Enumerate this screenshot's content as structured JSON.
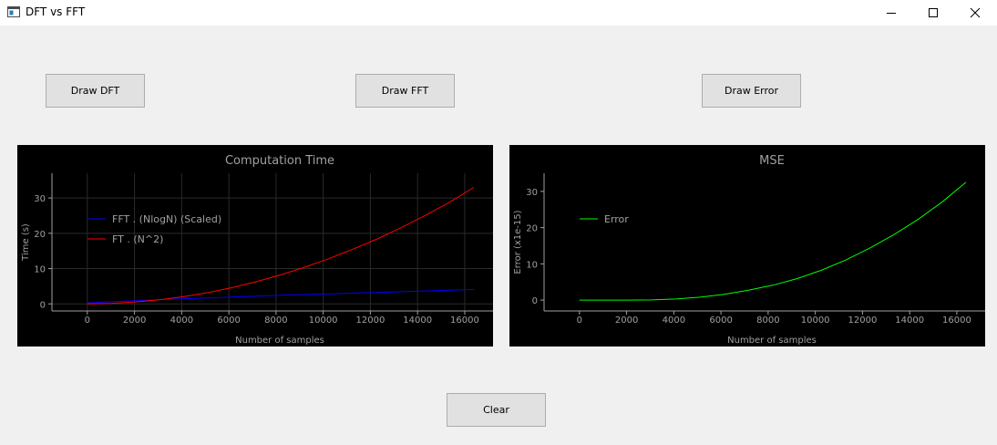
{
  "window": {
    "title": "DFT vs FFT"
  },
  "buttons": {
    "draw_dft": "Draw DFT",
    "draw_fft": "Draw FFT",
    "draw_error": "Draw Error",
    "clear": "Clear"
  },
  "colors": {
    "plot_background": "#000000",
    "fft_series": "#0000ff",
    "ft_series": "#ff0000",
    "error_series": "#00ff00",
    "axis_text": "#a0a0a0"
  },
  "chart_data": [
    {
      "type": "line",
      "title": "Computation Time",
      "xlabel": "Number of samples",
      "ylabel": "Time (s)",
      "xlim": [
        -1500,
        17200
      ],
      "ylim": [
        -2,
        37
      ],
      "xticks": [
        "0",
        "2000",
        "4000",
        "6000",
        "8000",
        "10000",
        "12000",
        "14000",
        "16000"
      ],
      "yticks": [
        "0",
        "10",
        "20",
        "30"
      ],
      "grid": true,
      "legend_position": "top-left",
      "series": [
        {
          "name": "FFT . (NlogN) (Scaled)",
          "color": "#0000ff",
          "x": [
            0,
            1024,
            2048,
            3072,
            4096,
            5120,
            6144,
            7168,
            8192,
            9216,
            10240,
            11264,
            12288,
            13312,
            14336,
            15360,
            16384
          ],
          "y": [
            0.3,
            0.6,
            0.9,
            1.2,
            1.45,
            1.7,
            1.95,
            2.2,
            2.45,
            2.65,
            2.85,
            3.05,
            3.25,
            3.45,
            3.65,
            3.85,
            4.1
          ]
        },
        {
          "name": "FT . (N^2)",
          "color": "#ff0000",
          "x": [
            0,
            1024,
            2048,
            3072,
            4096,
            5120,
            6144,
            7168,
            8192,
            9216,
            10240,
            11264,
            12288,
            13312,
            14336,
            15360,
            16384
          ],
          "y": [
            0,
            0.15,
            0.55,
            1.15,
            2.05,
            3.2,
            4.6,
            6.3,
            8.2,
            10.4,
            12.8,
            15.5,
            18.4,
            21.6,
            25.1,
            28.8,
            33.0
          ]
        }
      ]
    },
    {
      "type": "line",
      "title": "MSE",
      "xlabel": "Number of samples",
      "ylabel": "Error (x1e-15)",
      "xlim": [
        -1500,
        17200
      ],
      "ylim": [
        -3,
        35
      ],
      "xticks": [
        "0",
        "2000",
        "4000",
        "6000",
        "8000",
        "10000",
        "12000",
        "14000",
        "16000"
      ],
      "yticks": [
        "0",
        "10",
        "20",
        "30"
      ],
      "grid": false,
      "legend_position": "top-left",
      "series": [
        {
          "name": "Error",
          "color": "#00ff00",
          "x": [
            0,
            1024,
            2048,
            3072,
            4096,
            5120,
            6144,
            7168,
            8192,
            9216,
            10240,
            11264,
            12288,
            13312,
            14336,
            15360,
            16384
          ],
          "y": [
            0,
            0,
            0,
            0.05,
            0.3,
            0.8,
            1.6,
            2.7,
            4.1,
            5.9,
            8.2,
            11.0,
            14.3,
            18.0,
            22.2,
            27.0,
            32.5
          ]
        }
      ]
    }
  ]
}
